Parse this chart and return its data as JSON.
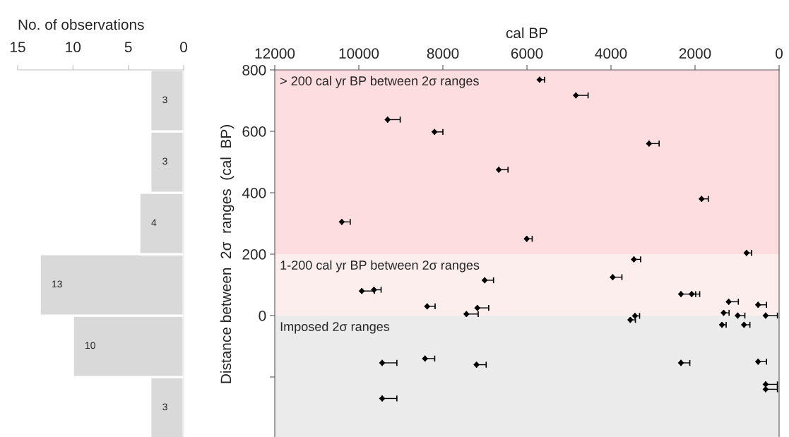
{
  "chart_data": [
    {
      "type": "histogram",
      "orientation": "horizontal",
      "xlabel": "No. of observations",
      "bins": [
        -400,
        -200,
        0,
        200,
        400,
        600,
        800
      ],
      "values": [
        3,
        10,
        13,
        4,
        3,
        3
      ],
      "ylim": [
        -400,
        800
      ],
      "color": "#d9d9d9",
      "data_labels": true,
      "xlim": [
        15,
        0
      ],
      "xticks": [
        15,
        10,
        5,
        0
      ],
      "tick_labels": "x",
      "grid": false
    },
    {
      "type": "scatter",
      "xlabel": "cal BP",
      "ylabel": "Distance between  2σ  ranges  (cal  BP)",
      "marker": "diamond",
      "grid": false,
      "xlim": [
        12000,
        0
      ],
      "xticks": [
        12000,
        10000,
        8000,
        6000,
        4000,
        2000,
        0
      ],
      "ylim": [
        -400,
        800
      ],
      "yticks": [
        {
          "value": -200,
          "label": null
        },
        0,
        200,
        400,
        600,
        800
      ],
      "bands": [
        {
          "axis": "y",
          "from": 200,
          "to": 800,
          "label": "> 200 cal yr BP between 2σ ranges",
          "color": "#fddde0"
        },
        {
          "axis": "y",
          "from": 0,
          "to": 200,
          "label": "1-200 cal yr BP between 2σ ranges",
          "color": "#fdeeee"
        },
        {
          "axis": "y",
          "from": -400,
          "to": 0,
          "label": "Imposed 2σ ranges",
          "color": "#ebebeb"
        }
      ],
      "series": [
        {
          "color": "#000000",
          "x": [
            5700,
            4835,
            9315,
            8200,
            3095,
            6670,
            1845,
            10405,
            6005,
            775,
            3455,
            3960,
            7005,
            9930,
            9640,
            8375,
            7440,
            7180,
            2335,
            2080,
            1200,
            500,
            1320,
            3430,
            3540,
            985,
            320,
            1360,
            835,
            9445,
            8425,
            7200,
            2335,
            500,
            320,
            320,
            9445
          ],
          "xerrors": [
            [
              5580,
              5700
            ],
            [
              4545,
              4835
            ],
            [
              9015,
              9315
            ],
            [
              8000,
              8200
            ],
            [
              2855,
              3095
            ],
            [
              6450,
              6670
            ],
            [
              1685,
              1845
            ],
            [
              10205,
              10405
            ],
            [
              5875,
              6005
            ],
            [
              655,
              775
            ],
            [
              3295,
              3455
            ],
            [
              3740,
              3960
            ],
            [
              6795,
              7005
            ],
            [
              9630,
              9930
            ],
            [
              9470,
              9640
            ],
            [
              8185,
              8375
            ],
            [
              7160,
              7440
            ],
            [
              6910,
              7180
            ],
            [
              1985,
              2335
            ],
            [
              1890,
              2080
            ],
            [
              970,
              1200
            ],
            [
              300,
              500
            ],
            [
              1190,
              1320
            ],
            [
              3320,
              3430
            ],
            [
              3420,
              3540
            ],
            [
              815,
              985
            ],
            [
              40,
              320
            ],
            [
              1260,
              1360
            ],
            [
              695,
              835
            ],
            [
              9095,
              9445
            ],
            [
              8195,
              8425
            ],
            [
              6970,
              7200
            ],
            [
              2125,
              2335
            ],
            [
              300,
              500
            ],
            [
              40,
              320
            ],
            [
              40,
              320
            ],
            [
              9095,
              9445
            ]
          ],
          "values": [
            768,
            717,
            638,
            598,
            560,
            475,
            380,
            305,
            250,
            204,
            183,
            125,
            115,
            80,
            84,
            30,
            5,
            25,
            70,
            70,
            45,
            35,
            9,
            -1,
            -14,
            0,
            0,
            -30,
            -30,
            -154,
            -140,
            -160,
            -154,
            -150,
            -224,
            -240,
            -270
          ]
        }
      ]
    }
  ]
}
